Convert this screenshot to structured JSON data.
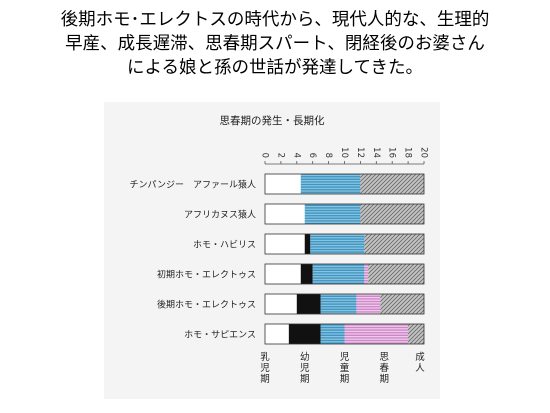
{
  "slide": {
    "title_lines": [
      "後期ホモ･エレクトスの時代から、現代人的な、生理的",
      "早産、成長遅滞、思春期スパート、閉経後のお婆さん",
      "による娘と孫の世話が発達してきた。"
    ]
  },
  "chart_data": {
    "type": "bar",
    "stacked": true,
    "orientation": "horizontal",
    "title": "思春期の発生・長期化",
    "xlim": [
      0,
      20
    ],
    "x_ticks": [
      "0",
      "2",
      "4",
      "6",
      "8",
      "10",
      "12",
      "14",
      "16",
      "18",
      "20"
    ],
    "categories": [
      "チンパンジー　アファール猿人",
      "アフリカヌス猿人",
      "ホモ・ハビリス",
      "初期ホモ・エレクトゥス",
      "後期ホモ・エレクトゥス",
      "ホモ・サピエンス"
    ],
    "series": [
      {
        "name": "乳児期",
        "color": "#ffffff",
        "pattern": "plain",
        "values": [
          4.5,
          5,
          5,
          4.5,
          4,
          3
        ]
      },
      {
        "name": "幼児期",
        "color": "#111111",
        "pattern": "solid",
        "values": [
          0,
          0,
          0.7,
          1.5,
          3,
          4
        ]
      },
      {
        "name": "児童期",
        "color": "#4aa0c8",
        "pattern": "lines",
        "values": [
          7.5,
          7,
          6.8,
          6.5,
          4.5,
          3
        ]
      },
      {
        "name": "思春期",
        "color": "#d59ad0",
        "pattern": "lines",
        "values": [
          0,
          0,
          0,
          0.5,
          3,
          8
        ]
      },
      {
        "name": "成人",
        "color": "#9a9a9a",
        "pattern": "hatch",
        "values": [
          8,
          8,
          7.5,
          7,
          5.5,
          2
        ]
      }
    ],
    "stage_labels": [
      {
        "text": "乳児期",
        "x": 0
      },
      {
        "text": "幼児期",
        "x": 5
      },
      {
        "text": "児童期",
        "x": 10
      },
      {
        "text": "思春期",
        "x": 15
      },
      {
        "text": "成人",
        "x": 19.5
      }
    ]
  }
}
